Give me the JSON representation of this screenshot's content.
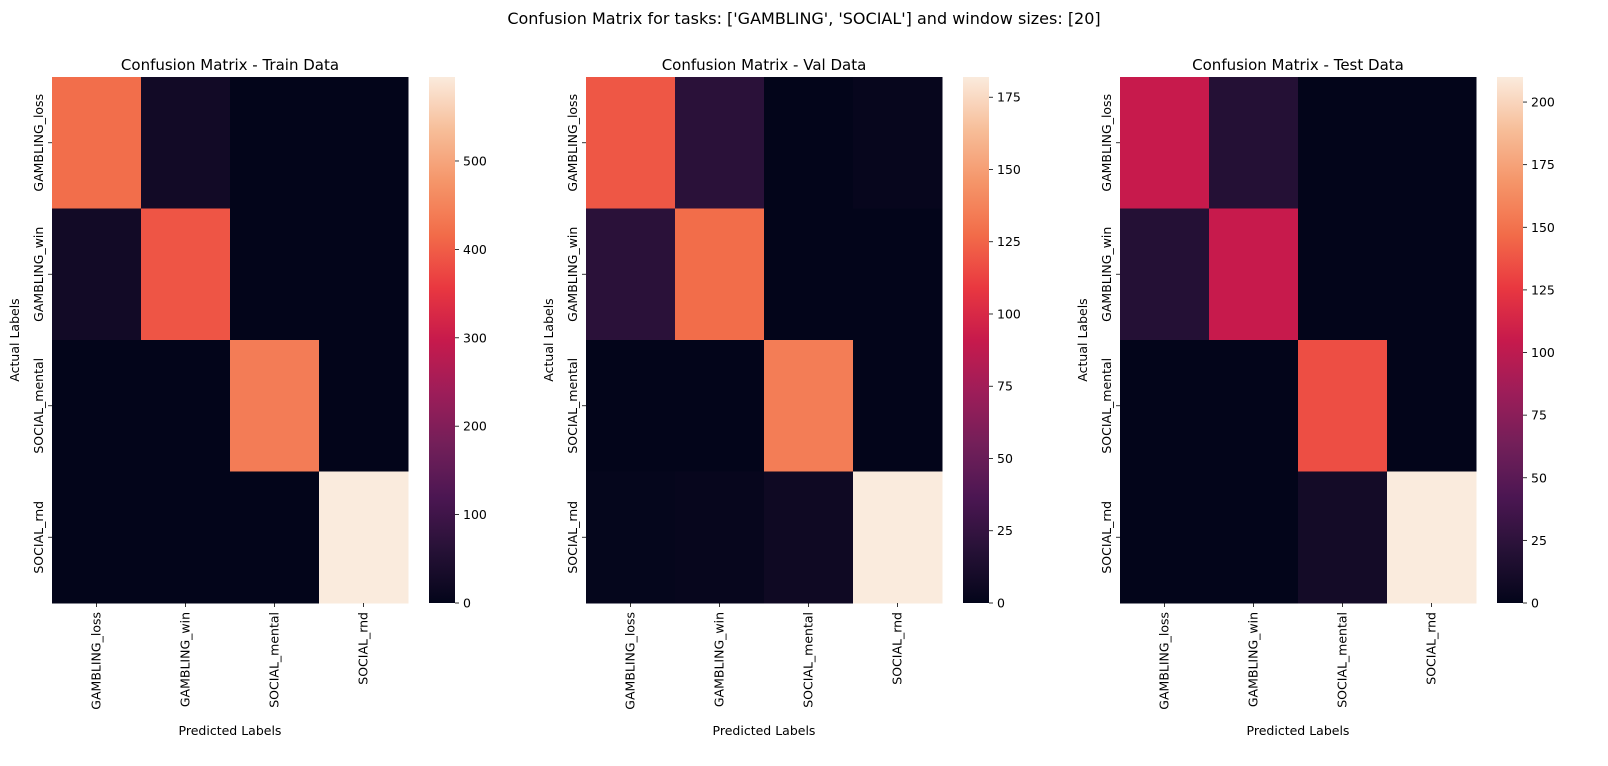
{
  "figure_title": "Confusion Matrix for tasks: ['GAMBLING', 'SOCIAL'] and window sizes: [20]",
  "colors": {
    "background": "#ffffff",
    "colormap": "rocket",
    "axis_text": "#000000"
  },
  "chart_data": [
    {
      "type": "heatmap",
      "title": "Confusion Matrix - Train Data",
      "xlabel": "Predicted Labels",
      "ylabel": "Actual Labels",
      "x_categories": [
        "GAMBLING_loss",
        "GAMBLING_win",
        "SOCIAL_mental",
        "SOCIAL_rnd"
      ],
      "y_categories": [
        "GAMBLING_loss",
        "GAMBLING_win",
        "SOCIAL_mental",
        "SOCIAL_rnd"
      ],
      "values": [
        [
          420,
          25,
          0,
          0
        ],
        [
          25,
          390,
          0,
          0
        ],
        [
          0,
          0,
          440,
          0
        ],
        [
          0,
          0,
          0,
          595
        ]
      ],
      "colorbar": {
        "vmin": 0,
        "vmax": 595,
        "ticks": [
          0,
          100,
          200,
          300,
          400,
          500
        ]
      }
    },
    {
      "type": "heatmap",
      "title": "Confusion Matrix - Val Data",
      "xlabel": "Predicted Labels",
      "ylabel": "Actual Labels",
      "x_categories": [
        "GAMBLING_loss",
        "GAMBLING_win",
        "SOCIAL_mental",
        "SOCIAL_rnd"
      ],
      "y_categories": [
        "GAMBLING_loss",
        "GAMBLING_win",
        "SOCIAL_mental",
        "SOCIAL_rnd"
      ],
      "values": [
        [
          120,
          20,
          0,
          2
        ],
        [
          20,
          128,
          0,
          0
        ],
        [
          0,
          0,
          135,
          0
        ],
        [
          1,
          2,
          6,
          182
        ]
      ],
      "colorbar": {
        "vmin": 0,
        "vmax": 182,
        "ticks": [
          0,
          25,
          50,
          75,
          100,
          125,
          150,
          175
        ]
      }
    },
    {
      "type": "heatmap",
      "title": "Confusion Matrix - Test Data",
      "xlabel": "Predicted Labels",
      "ylabel": "Actual Labels",
      "x_categories": [
        "GAMBLING_loss",
        "GAMBLING_win",
        "SOCIAL_mental",
        "SOCIAL_rnd"
      ],
      "y_categories": [
        "GAMBLING_loss",
        "GAMBLING_win",
        "SOCIAL_mental",
        "SOCIAL_rnd"
      ],
      "values": [
        [
          105,
          20,
          0,
          0
        ],
        [
          20,
          105,
          0,
          0
        ],
        [
          0,
          0,
          135,
          0
        ],
        [
          0,
          0,
          10,
          210
        ]
      ],
      "colorbar": {
        "vmin": 0,
        "vmax": 210,
        "ticks": [
          0,
          25,
          50,
          75,
          100,
          125,
          150,
          175,
          200
        ]
      }
    }
  ]
}
